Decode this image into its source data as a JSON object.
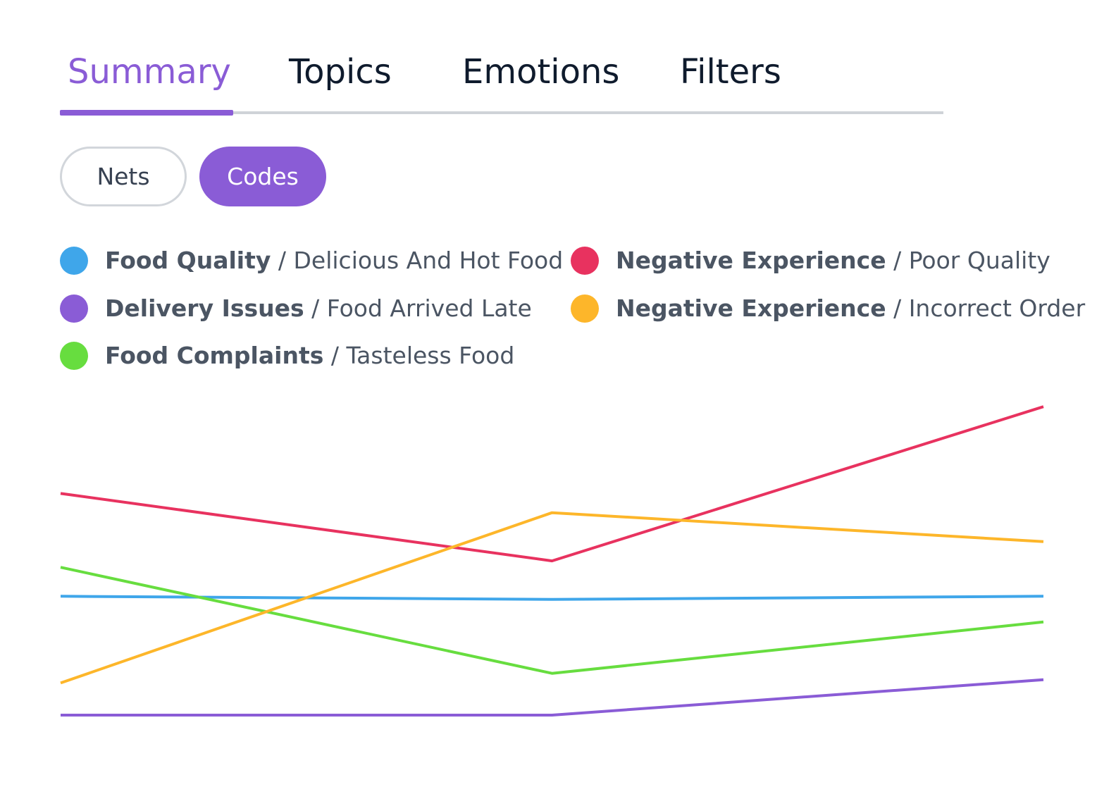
{
  "tabs": [
    {
      "label": "Summary",
      "active": true
    },
    {
      "label": "Topics",
      "active": false
    },
    {
      "label": "Emotions",
      "active": false
    },
    {
      "label": "Filters",
      "active": false
    }
  ],
  "toggle": {
    "nets_label": "Nets",
    "codes_label": "Codes",
    "selected": "Codes"
  },
  "colors": {
    "accent": "#8a5cd6",
    "track": "#cfd3d8"
  },
  "legend": [
    {
      "category": "Food Quality",
      "separator": " / ",
      "code": "Delicious And Hot Food",
      "color": "#3fa6ea"
    },
    {
      "category": "Delivery Issues",
      "separator": " / ",
      "code": "Food Arrived Late",
      "color": "#8a5cd6"
    },
    {
      "category": "Food Complaints",
      "separator": " / ",
      "code": "Tasteless Food",
      "color": "#67dd3f"
    },
    {
      "category": "Negative Experience",
      "separator": " / ",
      "code": "Poor Quality",
      "color": "#e8325f"
    },
    {
      "category": "Negative Experience",
      "separator": " / ",
      "code": "Incorrect Order",
      "color": "#fdb62a"
    }
  ],
  "chart_data": {
    "type": "line",
    "x": [
      0,
      1,
      2
    ],
    "ylim": [
      0,
      100
    ],
    "grid": false,
    "legend_position": "top",
    "series": [
      {
        "name": "Food Quality / Delicious And Hot Food",
        "color": "#3fa6ea",
        "values": [
          37,
          36,
          37
        ]
      },
      {
        "name": "Delivery Issues / Food Arrived Late",
        "color": "#8a5cd6",
        "values": [
          0,
          0,
          11
        ]
      },
      {
        "name": "Food Complaints / Tasteless Food",
        "color": "#67dd3f",
        "values": [
          46,
          13,
          29
        ]
      },
      {
        "name": "Negative Experience / Poor Quality",
        "color": "#e8325f",
        "values": [
          69,
          48,
          96
        ]
      },
      {
        "name": "Negative Experience / Incorrect Order",
        "color": "#fdb62a",
        "values": [
          10,
          63,
          54
        ]
      }
    ]
  }
}
